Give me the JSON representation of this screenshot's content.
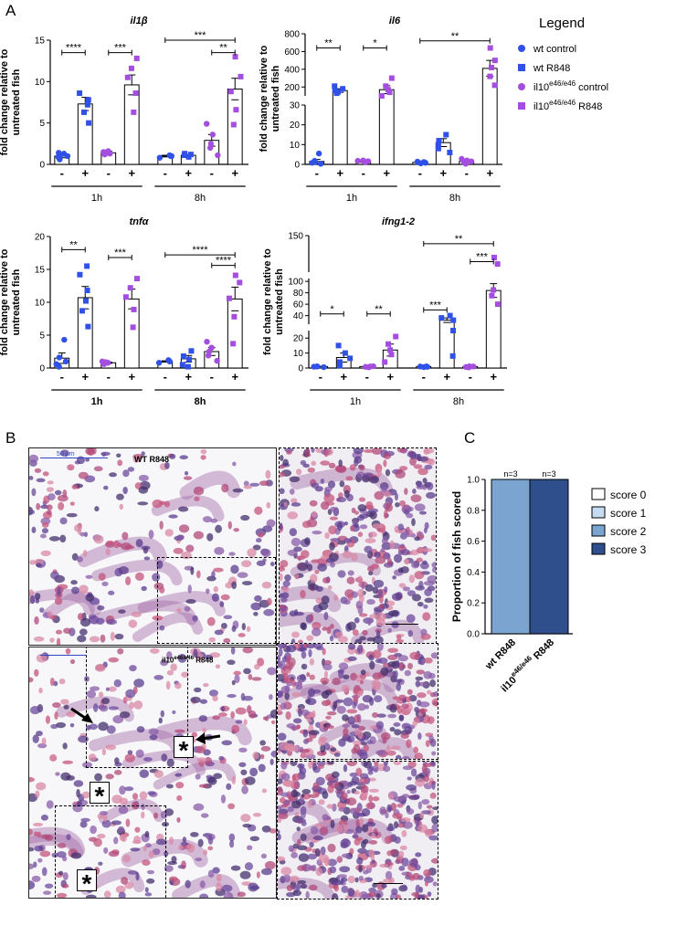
{
  "panels": {
    "A": "A",
    "B": "B",
    "C": "C"
  },
  "colors": {
    "wt": "#2f51e8",
    "il10": "#a44ee0",
    "score0": "#ffffff",
    "score1": "#c6dbf2",
    "score2": "#7ba4d0",
    "score3": "#2f4f8c"
  },
  "legend": {
    "title": "Legend",
    "items": [
      {
        "label": "wt control",
        "marker": "circle",
        "color": "#2f51e8"
      },
      {
        "label": "wt R848",
        "marker": "square",
        "color": "#2f51e8"
      },
      {
        "label": "il10",
        "sup": "e46/e46",
        "suffix": " control",
        "marker": "circle",
        "color": "#a44ee0"
      },
      {
        "label": "il10",
        "sup": "e46/e46",
        "suffix": " R848",
        "marker": "square",
        "color": "#a44ee0"
      }
    ]
  },
  "chart_data": [
    {
      "type": "bar",
      "title": "il1β",
      "ylabel": "fold change relative to untreated fish",
      "ylim": [
        0,
        15
      ],
      "yticks": [
        0,
        5,
        10,
        15
      ],
      "categories": [
        "-",
        "+",
        "-",
        "+",
        "-",
        "+",
        "-",
        "+"
      ],
      "groups": [
        {
          "label": "1h",
          "from": 0,
          "to": 3
        },
        {
          "label": "8h",
          "from": 4,
          "to": 7
        }
      ],
      "group_bold": false,
      "values": [
        1.0,
        7.3,
        1.4,
        9.6,
        1.0,
        1.1,
        2.9,
        9.1
      ],
      "sem": [
        0.2,
        0.8,
        0.2,
        1.2,
        0.1,
        0.1,
        0.7,
        1.3
      ],
      "points": [
        [
          0.6,
          0.9,
          1.0,
          1.1,
          1.3,
          1.4
        ],
        [
          5.0,
          6.3,
          7.2,
          7.8,
          8.6
        ],
        [
          1.2,
          1.3,
          1.4,
          1.5,
          1.6
        ],
        [
          6.3,
          8.6,
          10.5,
          11.6,
          12.8
        ],
        [
          0.8,
          1.0,
          1.0,
          1.1
        ],
        [
          0.9,
          1.1,
          1.2,
          1.3
        ],
        [
          1.1,
          2.0,
          2.5,
          3.6,
          4.9
        ],
        [
          4.8,
          6.6,
          8.8,
          10.6,
          13.0
        ]
      ],
      "sig": [
        {
          "from": 0,
          "to": 1,
          "y": 13.5,
          "label": "****"
        },
        {
          "from": 2,
          "to": 3,
          "y": 13.5,
          "label": "***"
        },
        {
          "from": 4,
          "to": 7,
          "y": 15.0,
          "label": "***"
        },
        {
          "from": 6,
          "to": 7,
          "y": 13.5,
          "label": "**"
        }
      ]
    },
    {
      "type": "bar",
      "title": "il6",
      "ylabel": "fold change relative to untreated fish",
      "scale": "broken",
      "yticks": [
        0,
        10,
        20,
        30,
        200,
        400,
        600,
        800
      ],
      "categories": [
        "-",
        "+",
        "-",
        "+",
        "-",
        "+",
        "-",
        "+"
      ],
      "groups": [
        {
          "label": "1h",
          "from": 0,
          "to": 3
        },
        {
          "label": "8h",
          "from": 4,
          "to": 7
        }
      ],
      "group_bold": false,
      "values": [
        1.5,
        160,
        1.5,
        170,
        1.0,
        11,
        1.5,
        410
      ],
      "sem": [
        1.0,
        20,
        0.4,
        45,
        0.3,
        2,
        0.5,
        90
      ],
      "points": [
        [
          0.3,
          0.8,
          1.2,
          1.8,
          5.5
        ],
        [
          130,
          145,
          160,
          180,
          210
        ],
        [
          1.2,
          1.4,
          1.6,
          1.8,
          2.0
        ],
        [
          100,
          140,
          170,
          210,
          300
        ],
        [
          0.5,
          0.8,
          1.0,
          1.2,
          1.4
        ],
        [
          6,
          8,
          10,
          12,
          15
        ],
        [
          0.3,
          1.0,
          1.5,
          2.0,
          2.8
        ],
        [
          220,
          320,
          420,
          500,
          640
        ]
      ],
      "sig": [
        {
          "from": 0,
          "to": 1,
          "y": 640,
          "label": "**"
        },
        {
          "from": 2,
          "to": 3,
          "y": 640,
          "label": "*"
        },
        {
          "from": 4,
          "to": 7,
          "y": 720,
          "label": "**"
        }
      ]
    },
    {
      "type": "bar",
      "title": "tnfα",
      "ylabel": "fold change relative to untreated fish",
      "ylim": [
        0,
        20
      ],
      "yticks": [
        0,
        5,
        10,
        15,
        20
      ],
      "categories": [
        "-",
        "+",
        "-",
        "+",
        "-",
        "+",
        "-",
        "+"
      ],
      "groups": [
        {
          "label": "1h",
          "from": 0,
          "to": 3
        },
        {
          "label": "8h",
          "from": 4,
          "to": 7
        }
      ],
      "group_bold": true,
      "values": [
        1.5,
        10.7,
        0.8,
        10.5,
        1.0,
        1.4,
        2.5,
        10.5
      ],
      "sem": [
        0.8,
        1.7,
        0.1,
        1.5,
        0.1,
        0.5,
        0.6,
        1.8
      ],
      "points": [
        [
          0.2,
          0.6,
          1.0,
          1.6,
          4.3
        ],
        [
          6.3,
          8.7,
          10.2,
          11.8,
          14.2,
          15.5
        ],
        [
          0.6,
          0.8,
          0.9,
          1.0
        ],
        [
          6.2,
          8.9,
          10.8,
          12.2,
          13.6
        ],
        [
          0.8,
          1.0,
          1.1,
          1.2
        ],
        [
          0.2,
          0.5,
          1.3,
          1.8,
          2.6
        ],
        [
          1.1,
          1.9,
          2.5,
          3.1,
          4.0
        ],
        [
          3.7,
          7.8,
          10.6,
          13.0,
          14.1
        ]
      ],
      "sig": [
        {
          "from": 0,
          "to": 1,
          "y": 18.0,
          "label": "**"
        },
        {
          "from": 2,
          "to": 3,
          "y": 16.8,
          "label": "***"
        },
        {
          "from": 4,
          "to": 7,
          "y": 17.2,
          "label": "****"
        },
        {
          "from": 6,
          "to": 7,
          "y": 15.6,
          "label": "****"
        }
      ]
    },
    {
      "type": "bar",
      "title": "ifng1-2",
      "ylabel": "fold change relative to untreated fish",
      "scale": "broken",
      "yticks": [
        0,
        10,
        20,
        40,
        60,
        80,
        100,
        150
      ],
      "categories": [
        "-",
        "+",
        "-",
        "+",
        "-",
        "+",
        "-",
        "+"
      ],
      "groups": [
        {
          "label": "1h",
          "from": 0,
          "to": 3
        },
        {
          "label": "8h",
          "from": 4,
          "to": 7
        }
      ],
      "group_bold": false,
      "values": [
        1.0,
        7.0,
        1.0,
        12.0,
        1.0,
        32,
        1.0,
        84
      ],
      "sem": [
        0.2,
        3.0,
        0.2,
        4.0,
        0.2,
        4,
        0.2,
        12
      ],
      "points": [
        [
          0.6,
          0.9,
          1.0,
          1.1
        ],
        [
          1.5,
          4.0,
          6.5,
          10.0,
          15.0
        ],
        [
          0.5,
          0.8,
          1.0,
          1.2
        ],
        [
          4.0,
          9.0,
          12.0,
          16.0,
          21.0
        ],
        [
          0.6,
          0.8,
          1.0,
          1.1
        ],
        [
          8.0,
          25,
          32,
          36,
          40
        ],
        [
          0.4,
          0.7,
          1.0,
          1.2
        ],
        [
          60,
          75,
          85,
          115,
          123
        ]
      ],
      "sig": [
        {
          "from": 0,
          "to": 1,
          "y": 43,
          "label": "*"
        },
        {
          "from": 2,
          "to": 3,
          "y": 43,
          "label": "**"
        },
        {
          "from": 4,
          "to": 5,
          "y": 50,
          "label": "***"
        },
        {
          "from": 4,
          "to": 7,
          "y": 140,
          "label": "**"
        },
        {
          "from": 6,
          "to": 7,
          "y": 118,
          "label": "***"
        }
      ]
    },
    {
      "type": "bar",
      "ylabel": "Proportion of fish scored",
      "ylim": [
        0.0,
        1.0
      ],
      "yticks": [
        "0.0",
        "0.2",
        "0.4",
        "0.6",
        "0.8",
        "1.0"
      ],
      "categories": [
        {
          "label": "wt R848",
          "sup": "",
          "suffix": ""
        },
        {
          "label": "il10",
          "sup": "e46/e46",
          "suffix": " R848"
        }
      ],
      "values": [
        1.0,
        1.0
      ],
      "score": [
        2,
        3
      ],
      "annotations": [
        "n=3",
        "n=3"
      ],
      "legend": [
        "score 0",
        "score 1",
        "score 2",
        "score 3"
      ]
    }
  ],
  "micrographs": {
    "top_label": "WT R848",
    "top_scale": "50 μm",
    "bottom_label": "il10",
    "bottom_label_sup": "e46/e46",
    "bottom_label_suffix": " R848",
    "asterisk": "*"
  }
}
